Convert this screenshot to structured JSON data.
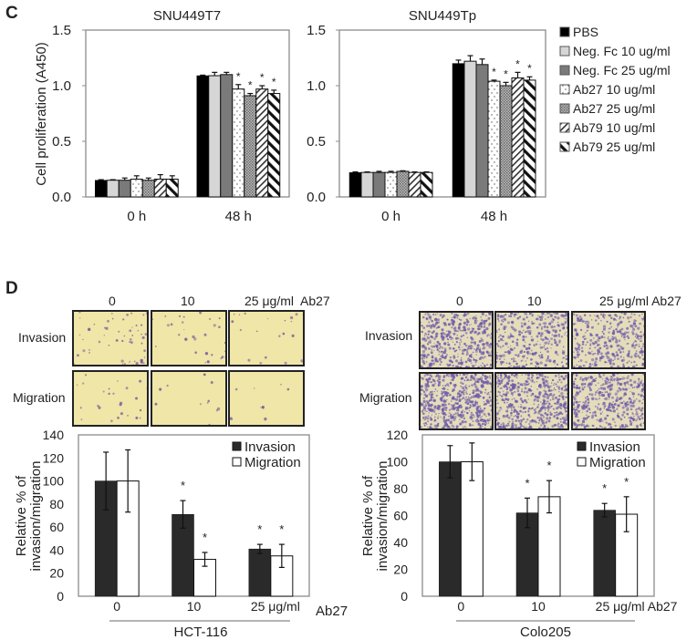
{
  "panels": {
    "c_label": "C",
    "d_label": "D"
  },
  "legend_c": [
    "PBS",
    "Neg. Fc 10 ug/ml",
    "Neg. Fc 25 ug/ml",
    "Ab27 10 ug/ml",
    "Ab27 25 ug/ml",
    "Ab79 10 ug/ml",
    "Ab79 25 ug/ml"
  ],
  "micrographs": {
    "left": {
      "columns": [
        "0",
        "10",
        "25 μg/ml  Ab27"
      ],
      "rows": [
        "Invasion",
        "Migration"
      ]
    },
    "right": {
      "columns": [
        "0",
        "10",
        "25 μg/ml Ab27"
      ],
      "rows": [
        "Invasion",
        "Migration"
      ]
    }
  },
  "chart_data": [
    {
      "type": "bar",
      "title": "SNU449T7",
      "ylabel": "Cell proliferation (A450)",
      "xlabel": "",
      "categories": [
        "0 h",
        "48 h"
      ],
      "ylim": [
        0,
        1.5
      ],
      "yticks": [
        "0.0",
        "0.5",
        "1.0",
        "1.5"
      ],
      "ytick_values": [
        0,
        0.5,
        1.0,
        1.5
      ],
      "series": [
        {
          "name": "PBS",
          "style": "black",
          "values": [
            0.15,
            1.09
          ],
          "errors": [
            0.005,
            0.005
          ],
          "significant": [
            false,
            false
          ]
        },
        {
          "name": "Neg. Fc 10 ug/ml",
          "style": "lightgray",
          "values": [
            0.15,
            1.09
          ],
          "errors": [
            0.005,
            0.03
          ],
          "significant": [
            false,
            false
          ]
        },
        {
          "name": "Neg. Fc 25 ug/ml",
          "style": "gray",
          "values": [
            0.15,
            1.1
          ],
          "errors": [
            0.02,
            0.02
          ],
          "significant": [
            false,
            false
          ]
        },
        {
          "name": "Ab27 10 ug/ml",
          "style": "dots",
          "values": [
            0.16,
            0.97
          ],
          "errors": [
            0.03,
            0.04
          ],
          "significant": [
            false,
            true
          ]
        },
        {
          "name": "Ab27 25 ug/ml",
          "style": "crosshatch",
          "values": [
            0.15,
            0.91
          ],
          "errors": [
            0.02,
            0.02
          ],
          "significant": [
            false,
            true
          ]
        },
        {
          "name": "Ab79 10 ug/ml",
          "style": "hatch-fwd",
          "values": [
            0.16,
            0.97
          ],
          "errors": [
            0.04,
            0.03
          ],
          "significant": [
            false,
            true
          ]
        },
        {
          "name": "Ab79 25 ug/ml",
          "style": "hatch-back",
          "values": [
            0.16,
            0.93
          ],
          "errors": [
            0.03,
            0.03
          ],
          "significant": [
            false,
            true
          ]
        }
      ]
    },
    {
      "type": "bar",
      "title": "SNU449Tp",
      "ylabel": "",
      "xlabel": "",
      "categories": [
        "0 h",
        "48 h"
      ],
      "ylim": [
        0,
        1.5
      ],
      "yticks": [
        "0.0",
        "0.5",
        "1.0",
        "1.5"
      ],
      "ytick_values": [
        0,
        0.5,
        1.0,
        1.5
      ],
      "legend": "right",
      "series": [
        {
          "name": "PBS",
          "style": "black",
          "values": [
            0.22,
            1.2
          ],
          "errors": [
            0.005,
            0.03
          ],
          "significant": [
            false,
            false
          ]
        },
        {
          "name": "Neg. Fc 10 ug/ml",
          "style": "lightgray",
          "values": [
            0.22,
            1.22
          ],
          "errors": [
            0.005,
            0.05
          ],
          "significant": [
            false,
            false
          ]
        },
        {
          "name": "Neg. Fc 25 ug/ml",
          "style": "gray",
          "values": [
            0.22,
            1.19
          ],
          "errors": [
            0.01,
            0.05
          ],
          "significant": [
            false,
            false
          ]
        },
        {
          "name": "Ab27 10 ug/ml",
          "style": "dots",
          "values": [
            0.22,
            1.04
          ],
          "errors": [
            0.01,
            0.01
          ],
          "significant": [
            false,
            true
          ]
        },
        {
          "name": "Ab27 25 ug/ml",
          "style": "crosshatch",
          "values": [
            0.23,
            1.0
          ],
          "errors": [
            0.005,
            0.03
          ],
          "significant": [
            false,
            true
          ]
        },
        {
          "name": "Ab79 10 ug/ml",
          "style": "hatch-fwd",
          "values": [
            0.22,
            1.07
          ],
          "errors": [
            0.005,
            0.05
          ],
          "significant": [
            false,
            true
          ]
        },
        {
          "name": "Ab79 25 ug/ml",
          "style": "hatch-back",
          "values": [
            0.22,
            1.05
          ],
          "errors": [
            0.005,
            0.03
          ],
          "significant": [
            false,
            true
          ]
        }
      ]
    },
    {
      "type": "bar",
      "title": "",
      "ylabel": [
        "Relative % of",
        "invasion/migration"
      ],
      "categories": [
        "0",
        "10",
        "25 μg/ml"
      ],
      "xlabel_suffix": "Ab27",
      "group_label": "HCT-116",
      "ylim": [
        0,
        140
      ],
      "yticks": [
        "0",
        "20",
        "40",
        "60",
        "80",
        "100",
        "120",
        "140"
      ],
      "ytick_values": [
        0,
        20,
        40,
        60,
        80,
        100,
        120,
        140
      ],
      "legend": "top-right",
      "series": [
        {
          "name": "Invasion",
          "style": "dark",
          "values": [
            100,
            71,
            41
          ],
          "errors": [
            25,
            12,
            4
          ],
          "significant": [
            false,
            true,
            true
          ]
        },
        {
          "name": "Migration",
          "style": "white",
          "values": [
            100,
            32,
            35
          ],
          "errors": [
            27,
            6,
            10
          ],
          "significant": [
            false,
            true,
            true
          ]
        }
      ]
    },
    {
      "type": "bar",
      "title": "",
      "ylabel": [
        "Relative % of",
        "invasion/migration"
      ],
      "categories": [
        "0",
        "10",
        "25 μg/ml Ab27"
      ],
      "xlabel_suffix": "",
      "group_label": "Colo205",
      "ylim": [
        0,
        120
      ],
      "yticks": [
        "0",
        "20",
        "40",
        "60",
        "80",
        "100",
        "120"
      ],
      "ytick_values": [
        0,
        20,
        40,
        60,
        80,
        100,
        120
      ],
      "legend": "top-right",
      "series": [
        {
          "name": "Invasion",
          "style": "dark",
          "values": [
            100,
            62,
            64
          ],
          "errors": [
            12,
            11,
            5
          ],
          "significant": [
            false,
            true,
            true
          ]
        },
        {
          "name": "Migration",
          "style": "white",
          "values": [
            100,
            74,
            61
          ],
          "errors": [
            14,
            12,
            13
          ],
          "significant": [
            false,
            true,
            true
          ]
        }
      ]
    }
  ]
}
